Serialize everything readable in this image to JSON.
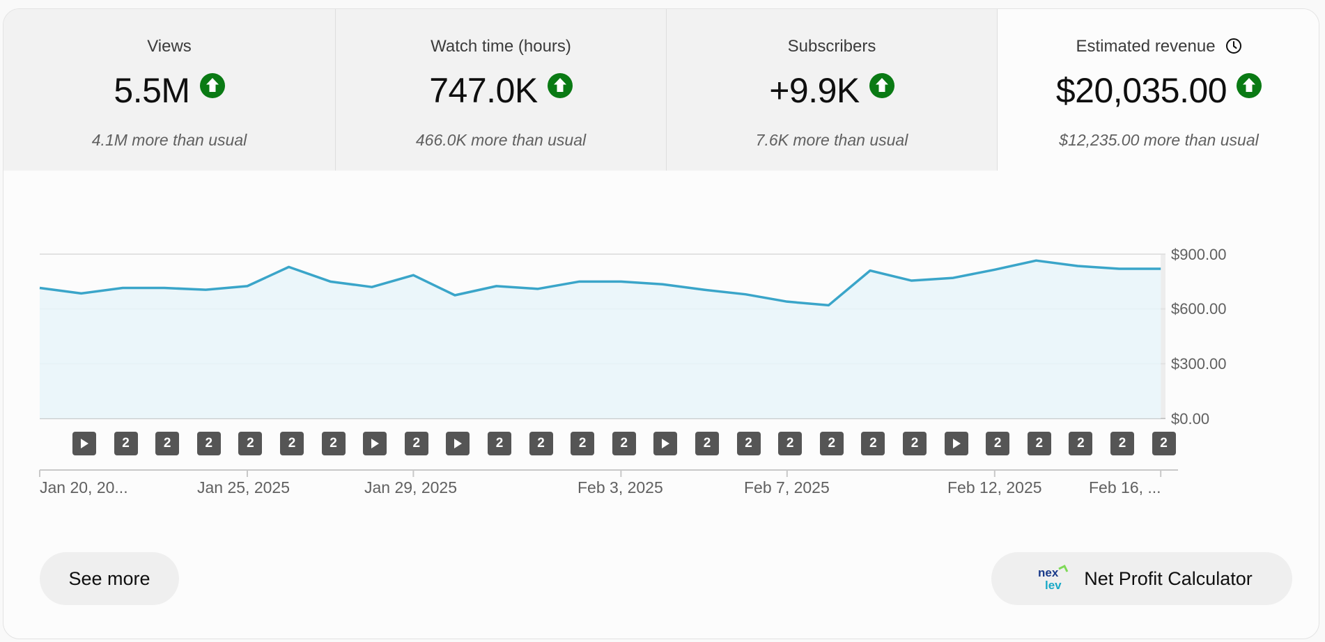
{
  "colors": {
    "line": "#3aa5c9",
    "area": "#e8f4f9",
    "grid": "#e2e2e2",
    "up_badge": "#0a7a14",
    "marker_bg": "#555555"
  },
  "metrics": [
    {
      "title": "Views",
      "value": "5.5M",
      "comparison": "4.1M more than usual",
      "trend_icon": "arrow-up-circle-icon"
    },
    {
      "title": "Watch time (hours)",
      "value": "747.0K",
      "comparison": "466.0K more than usual",
      "trend_icon": "arrow-up-circle-icon"
    },
    {
      "title": "Subscribers",
      "value": "+9.9K",
      "comparison": "7.6K more than usual",
      "trend_icon": "arrow-up-circle-icon"
    },
    {
      "title": "Estimated revenue",
      "value": "$20,035.00",
      "comparison": "$12,235.00 more than usual",
      "trend_icon": "arrow-up-circle-icon",
      "extra_icon": "clock-icon",
      "selected": true
    }
  ],
  "chart_data": {
    "type": "area",
    "title": "Estimated revenue",
    "y_tick_labels": [
      "$900.00",
      "$600.00",
      "$300.00",
      "$0.00"
    ],
    "y_ticks": [
      900,
      600,
      300,
      0
    ],
    "ylim": [
      0,
      900
    ],
    "x_tick_labels": [
      "Jan 20, 20...",
      "Jan 25, 2025",
      "Jan 29, 2025",
      "Feb 3, 2025",
      "Feb 7, 2025",
      "Feb 12, 2025",
      "Feb 16, ..."
    ],
    "x_tick_index": [
      0,
      5,
      9,
      14,
      18,
      23,
      27
    ],
    "x": [
      "Jan 20",
      "Jan 21",
      "Jan 22",
      "Jan 23",
      "Jan 24",
      "Jan 25",
      "Jan 26",
      "Jan 27",
      "Jan 28",
      "Jan 29",
      "Jan 30",
      "Jan 31",
      "Feb 1",
      "Feb 2",
      "Feb 3",
      "Feb 4",
      "Feb 5",
      "Feb 6",
      "Feb 7",
      "Feb 8",
      "Feb 9",
      "Feb 10",
      "Feb 11",
      "Feb 12",
      "Feb 13",
      "Feb 14",
      "Feb 15",
      "Feb 16"
    ],
    "series": [
      {
        "name": "Estimated revenue",
        "values": [
          715,
          685,
          715,
          715,
          705,
          725,
          830,
          750,
          720,
          785,
          675,
          725,
          710,
          750,
          750,
          735,
          705,
          680,
          640,
          620,
          810,
          755,
          770,
          815,
          865,
          835,
          820,
          820
        ]
      }
    ],
    "partial_from_index": 27,
    "grid": true
  },
  "markers": [
    "play",
    "2",
    "2",
    "2",
    "2",
    "2",
    "2",
    "play",
    "2",
    "play",
    "2",
    "2",
    "2",
    "2",
    "play",
    "2",
    "2",
    "2",
    "2",
    "2",
    "2",
    "play",
    "2",
    "2",
    "2",
    "2",
    "2"
  ],
  "buttons": {
    "see_more": "See more",
    "net_profit": "Net Profit Calculator",
    "net_profit_logo_text": "nexlev"
  }
}
